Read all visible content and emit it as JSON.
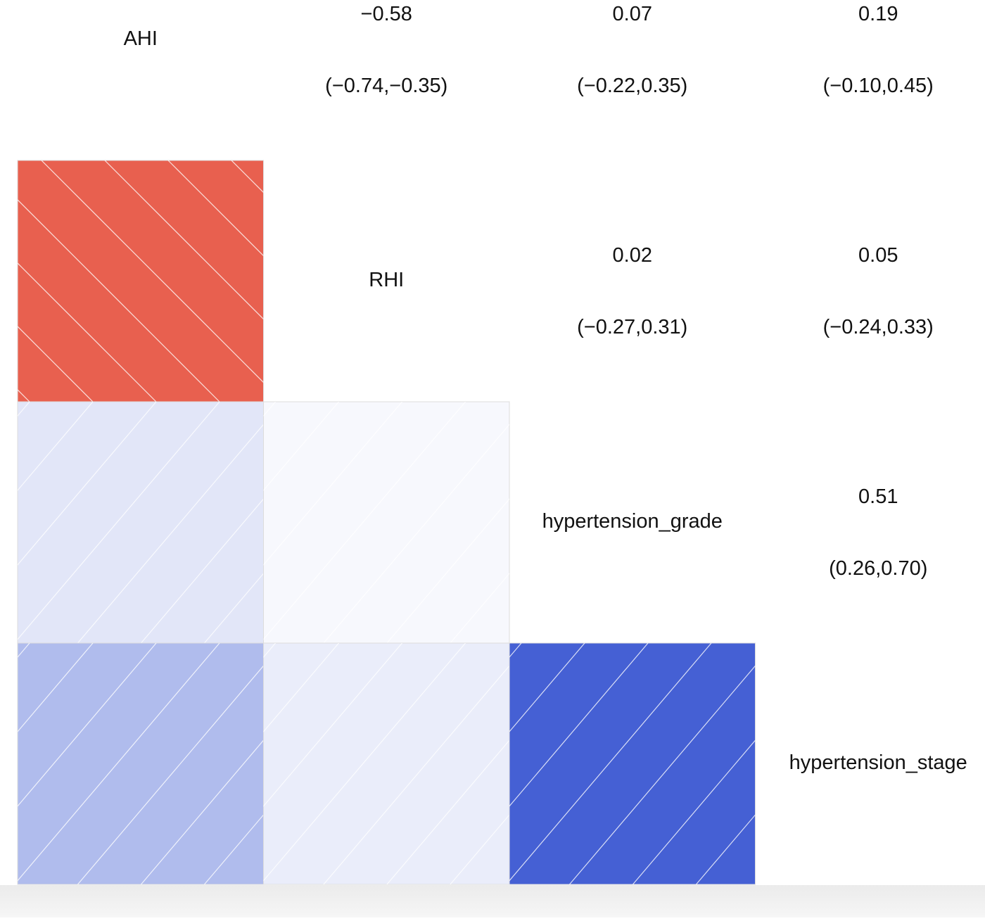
{
  "chart_data": {
    "type": "corrgram",
    "variables": [
      "AHI",
      "RHI",
      "hypertension_grade",
      "hypertension_stage"
    ],
    "values": [
      [
        null,
        -0.58,
        0.07,
        0.19
      ],
      [
        null,
        null,
        0.02,
        0.05
      ],
      [
        null,
        null,
        null,
        0.51
      ],
      [
        null,
        null,
        null,
        null
      ]
    ],
    "value_labels": [
      [
        null,
        "−0.58",
        "0.07",
        "0.19"
      ],
      [
        null,
        null,
        "0.02",
        "0.05"
      ],
      [
        null,
        null,
        null,
        "0.51"
      ],
      [
        null,
        null,
        null,
        null
      ]
    ],
    "ci_labels": [
      [
        null,
        "(−0.74,−0.35)",
        "(−0.22,0.35)",
        "(−0.10,0.45)"
      ],
      [
        null,
        null,
        "(−0.27,0.31)",
        "(−0.24,0.33)"
      ],
      [
        null,
        null,
        null,
        "(0.26,0.70)"
      ],
      [
        null,
        null,
        null,
        null
      ]
    ],
    "colors": {
      "negative": "#e8604f",
      "positive": "#4560d4"
    }
  }
}
